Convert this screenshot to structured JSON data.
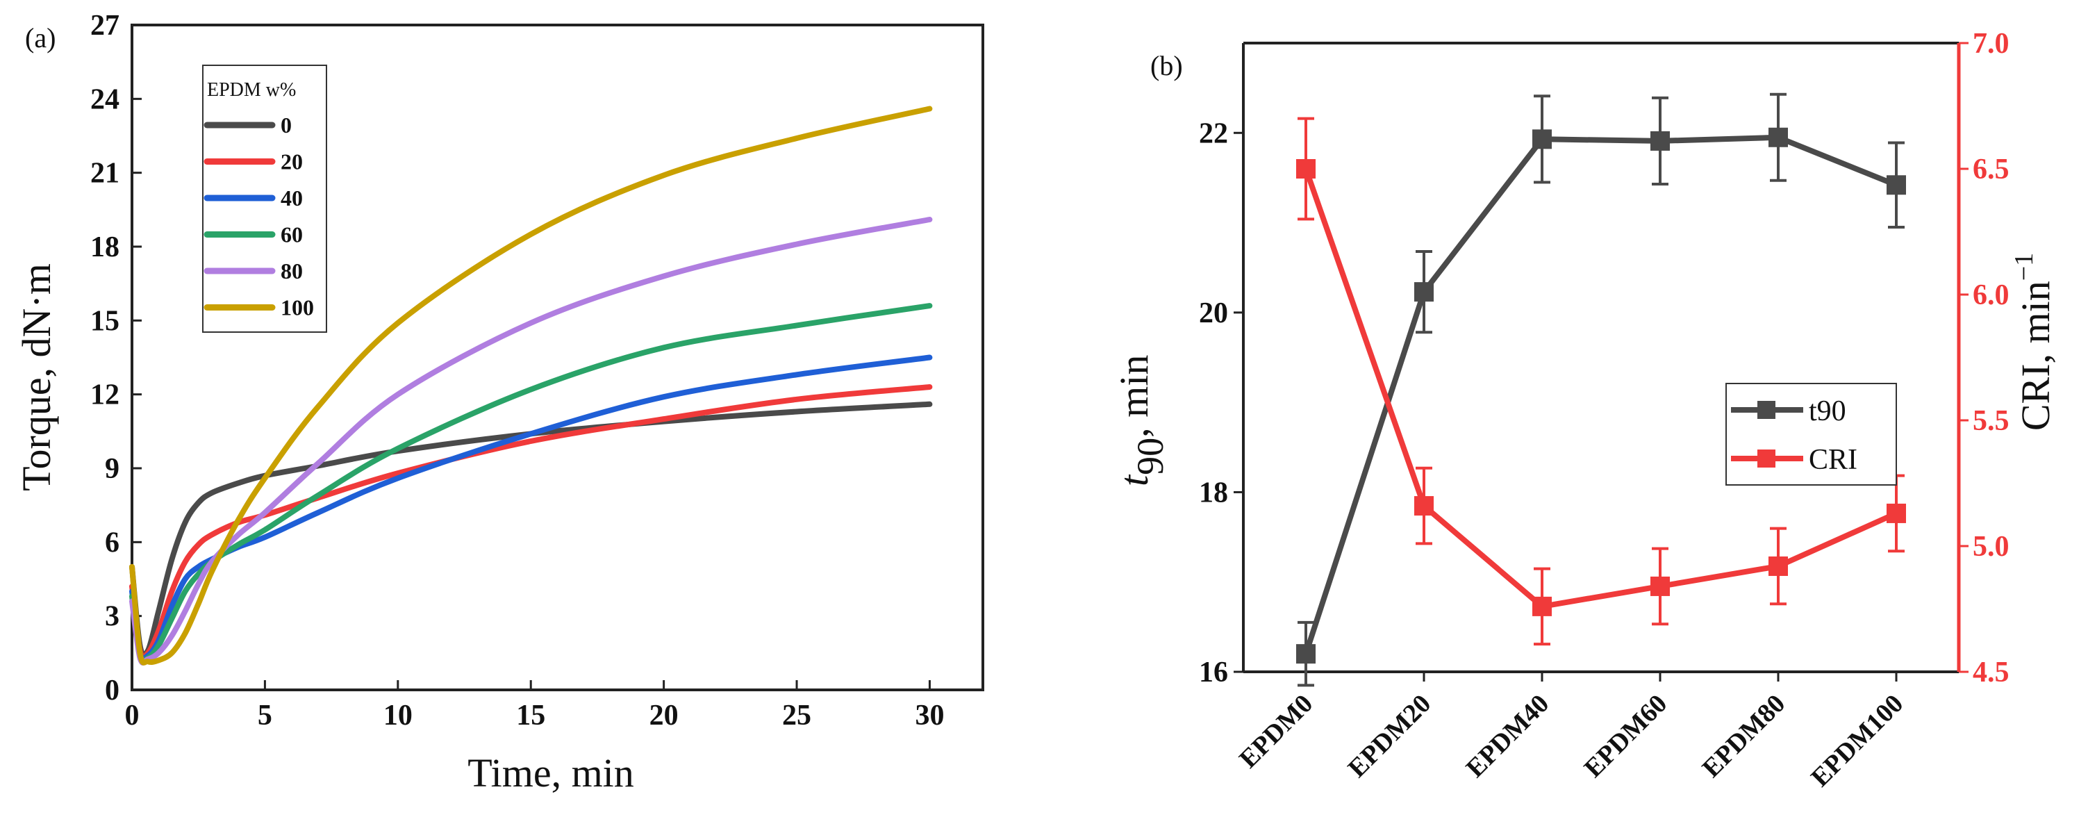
{
  "chart_data": [
    {
      "panel": "(a)",
      "type": "line",
      "xlabel": "Time, min",
      "ylabel": "Torque, dN·m",
      "xlim": [
        0,
        32
      ],
      "ylim": [
        0,
        27
      ],
      "xticks": [
        "0",
        "5",
        "10",
        "15",
        "20",
        "25",
        "30"
      ],
      "yticks": [
        "0",
        "3",
        "6",
        "9",
        "12",
        "15",
        "18",
        "21",
        "24",
        "27"
      ],
      "legend": {
        "title": "EPDM w%",
        "position": "top-left"
      },
      "series": [
        {
          "name": "0",
          "color": "#4a4a4a",
          "x": [
            0,
            0.3,
            0.6,
            1,
            1.5,
            2,
            2.5,
            3,
            4,
            5,
            7,
            10,
            15,
            20,
            25,
            30
          ],
          "y": [
            5.0,
            1.8,
            1.6,
            3.2,
            5.3,
            6.8,
            7.6,
            8.0,
            8.4,
            8.7,
            9.1,
            9.7,
            10.4,
            10.9,
            11.3,
            11.6
          ]
        },
        {
          "name": "20",
          "color": "#f03a3a",
          "x": [
            0,
            0.3,
            0.6,
            1,
            1.5,
            2,
            2.5,
            3,
            4,
            5,
            7,
            10,
            15,
            20,
            25,
            30
          ],
          "y": [
            4.2,
            1.6,
            1.5,
            2.4,
            4.0,
            5.2,
            5.9,
            6.3,
            6.8,
            7.1,
            7.8,
            8.8,
            10.1,
            11.0,
            11.8,
            12.3
          ]
        },
        {
          "name": "40",
          "color": "#1f5fd6",
          "x": [
            0,
            0.3,
            0.6,
            1,
            1.5,
            2,
            2.5,
            3,
            4,
            5,
            7,
            10,
            15,
            20,
            25,
            30
          ],
          "y": [
            4.0,
            1.5,
            1.4,
            2.0,
            3.4,
            4.5,
            5.0,
            5.3,
            5.8,
            6.2,
            7.2,
            8.6,
            10.4,
            11.9,
            12.8,
            13.5
          ]
        },
        {
          "name": "60",
          "color": "#2aa368",
          "x": [
            0,
            0.3,
            0.6,
            1,
            1.5,
            2,
            2.5,
            3,
            4,
            5,
            7,
            10,
            15,
            20,
            25,
            30
          ],
          "y": [
            3.8,
            1.4,
            1.3,
            1.8,
            2.9,
            4.0,
            4.7,
            5.2,
            5.9,
            6.5,
            7.9,
            9.8,
            12.2,
            13.9,
            14.8,
            15.6
          ]
        },
        {
          "name": "80",
          "color": "#b07ee0",
          "x": [
            0,
            0.3,
            0.6,
            1,
            1.5,
            2,
            2.5,
            3,
            4,
            5,
            7,
            10,
            15,
            20,
            25,
            30
          ],
          "y": [
            3.6,
            1.3,
            1.25,
            1.5,
            2.2,
            3.2,
            4.3,
            5.2,
            6.3,
            7.2,
            9.2,
            12.0,
            14.9,
            16.8,
            18.1,
            19.1
          ]
        },
        {
          "name": "100",
          "color": "#c9a000",
          "x": [
            0,
            0.3,
            0.6,
            1,
            1.5,
            2,
            2.5,
            3,
            4,
            5,
            7,
            10,
            15,
            20,
            25,
            30
          ],
          "y": [
            5.0,
            1.5,
            1.15,
            1.2,
            1.5,
            2.3,
            3.5,
            4.8,
            6.9,
            8.6,
            11.5,
            14.9,
            18.5,
            20.9,
            22.4,
            23.6
          ]
        }
      ]
    },
    {
      "panel": "(b)",
      "type": "line",
      "categories": [
        "EPDM0",
        "EPDM20",
        "EPDM40",
        "EPDM60",
        "EPDM80",
        "EPDM100"
      ],
      "ylabel_left": "t",
      "ylabel_left_sub": "90",
      "ylabel_left_unit": ", min",
      "ylabel_right": "CRI, min",
      "ylabel_right_sup": "−1",
      "ylim_left": [
        16,
        23
      ],
      "ylim_right": [
        4.5,
        7.0
      ],
      "yticks_left": [
        "16",
        "18",
        "20",
        "22"
      ],
      "yticks_right": [
        "4.5",
        "5.0",
        "5.5",
        "6.0",
        "6.5",
        "7.0"
      ],
      "legend": {
        "position": "center-right"
      },
      "series": [
        {
          "name": "t90",
          "axis": "left",
          "color": "#4a4a4a",
          "values": [
            16.2,
            20.23,
            21.93,
            21.91,
            21.95,
            21.42
          ],
          "errors": [
            0.35,
            0.45,
            0.48,
            0.48,
            0.48,
            0.47
          ]
        },
        {
          "name": "CRI",
          "axis": "right",
          "color": "#f03a3a",
          "values": [
            6.5,
            5.16,
            4.76,
            4.84,
            4.92,
            5.13
          ],
          "errors": [
            0.2,
            0.15,
            0.15,
            0.15,
            0.15,
            0.15
          ]
        }
      ]
    }
  ]
}
